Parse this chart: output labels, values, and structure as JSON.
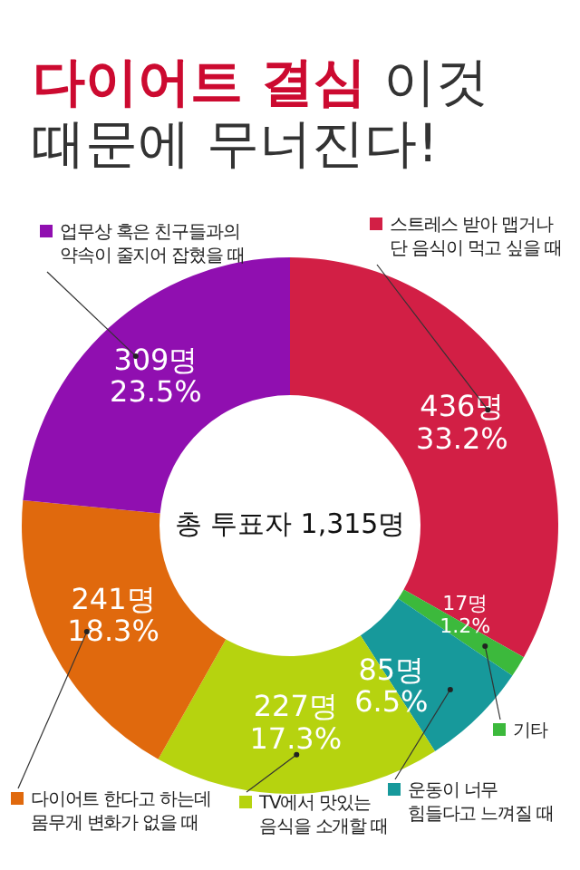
{
  "chart_data": {
    "type": "donut",
    "title": "다이어트 결심 이것\n때문에 무너진다!",
    "categories": [
      "스트레스 받아 맵거나\n단 음식이 먹고 싶을 때",
      "기타",
      "운동이 너무\n힘들다고 느껴질 때",
      "TV에서 맛있는\n음식을 소개할 때",
      "다이어트 한다고 하는데\n몸무게 변화가 없을 때",
      "업무상 혹은 친구들과의\n약속이 줄지어 잡혔을 때"
    ],
    "values": [
      436,
      17,
      85,
      227,
      241,
      309
    ],
    "value_labels": [
      "436명\n33.2%",
      "17명\n1.2%",
      "85명\n6.5%",
      "227명\n17.3%",
      "241명\n18.3%",
      "309명\n23.5%"
    ],
    "colors": [
      "#d21f45",
      "#3cb93c",
      "#17999b",
      "#b6d30f",
      "#e0690d",
      "#900fb0"
    ],
    "annotations": [
      "총 투표자 1,315명"
    ],
    "legend": "bottom"
  }
}
